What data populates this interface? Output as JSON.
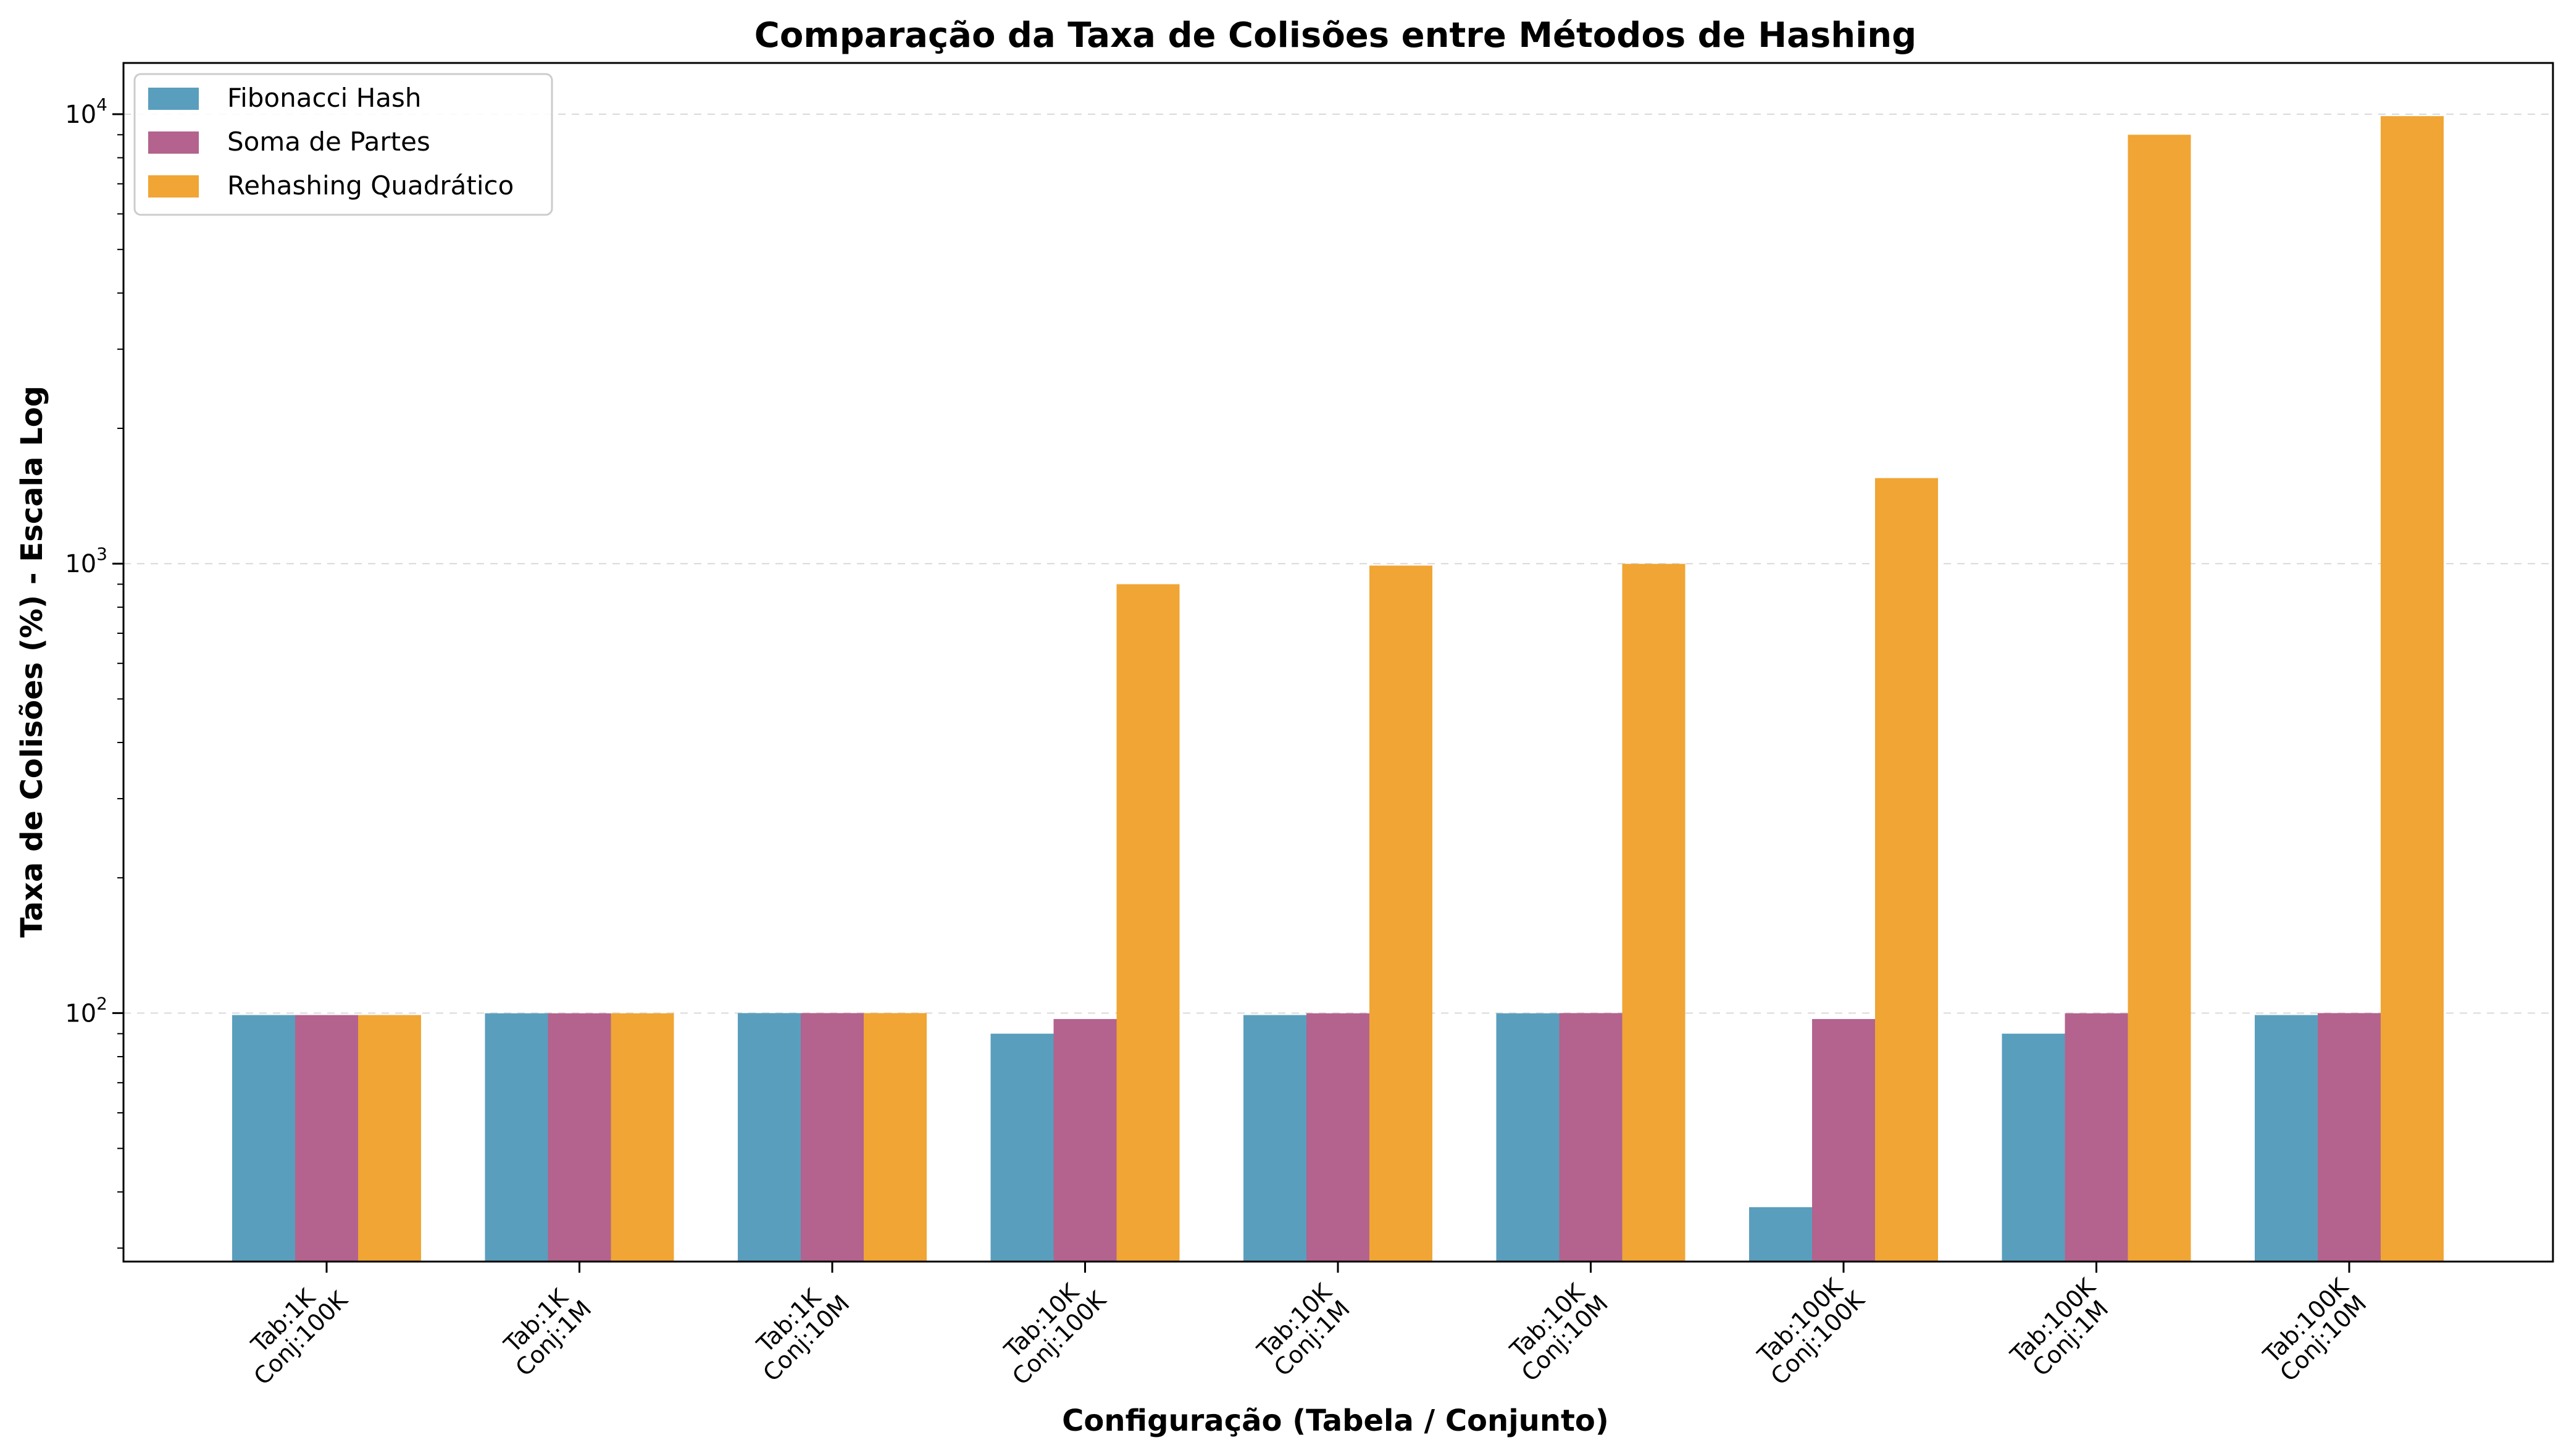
{
  "chart_data": {
    "type": "bar",
    "title": "Comparação da Taxa de Colisões entre Métodos de Hashing",
    "xlabel": "Configuração (Tabela / Conjunto)",
    "ylabel": "Taxa de Colisões (%) - Escala Log",
    "yscale": "log",
    "ylim": [
      28,
      13000
    ],
    "grid": "y-major-dashed",
    "legend_position": "top-left",
    "categories": [
      [
        "Tab:1K",
        "Conj:100K"
      ],
      [
        "Tab:1K",
        "Conj:1M"
      ],
      [
        "Tab:1K",
        "Conj:10M"
      ],
      [
        "Tab:10K",
        "Conj:100K"
      ],
      [
        "Tab:10K",
        "Conj:1M"
      ],
      [
        "Tab:10K",
        "Conj:10M"
      ],
      [
        "Tab:100K",
        "Conj:100K"
      ],
      [
        "Tab:100K",
        "Conj:1M"
      ],
      [
        "Tab:100K",
        "Conj:10M"
      ]
    ],
    "yticks": [
      {
        "base": "10",
        "exp": "2",
        "value": 100
      },
      {
        "base": "10",
        "exp": "3",
        "value": 1000
      },
      {
        "base": "10",
        "exp": "4",
        "value": 10000
      }
    ],
    "series": [
      {
        "name": "Fibonacci Hash",
        "color": "#5a9ebd",
        "values": [
          99,
          99.9,
          100,
          90,
          99,
          99.9,
          37,
          90,
          99
        ]
      },
      {
        "name": "Soma de Partes",
        "color": "#b3638d",
        "values": [
          99,
          99.9,
          100,
          97,
          99.9,
          100,
          97,
          99.9,
          100
        ]
      },
      {
        "name": "Rehashing Quadrático",
        "color": "#f0a534",
        "values": [
          99,
          99.9,
          100,
          900,
          990,
          999,
          1550,
          9000,
          9900
        ]
      }
    ]
  }
}
